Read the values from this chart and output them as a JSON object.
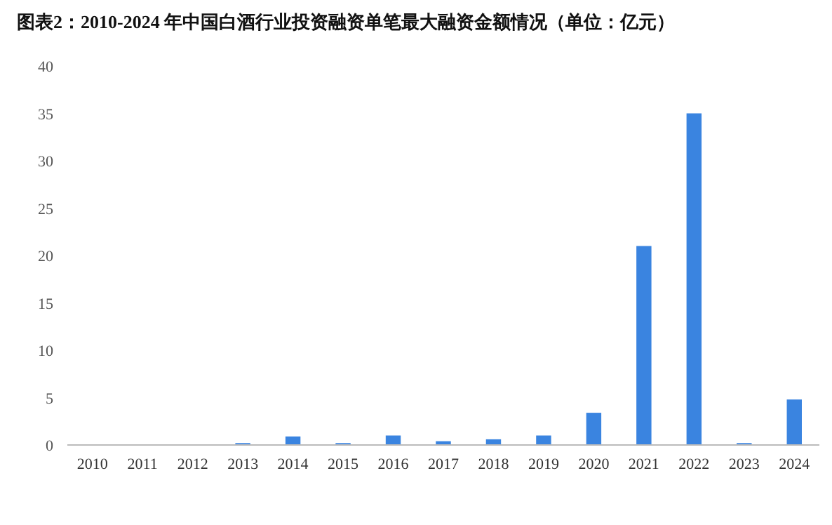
{
  "chart_data": {
    "type": "bar",
    "title": "图表2：2010-2024 年中国白酒行业投资融资单笔最大融资金额情况（单位：亿元）",
    "categories": [
      "2010",
      "2011",
      "2012",
      "2013",
      "2014",
      "2015",
      "2016",
      "2017",
      "2018",
      "2019",
      "2020",
      "2021",
      "2022",
      "2023",
      "2024"
    ],
    "values": [
      0,
      0,
      0,
      0.2,
      0.9,
      0.2,
      1.0,
      0.4,
      0.6,
      1.0,
      3.4,
      21,
      35,
      0.2,
      4.8
    ],
    "color": "#3a84e0",
    "ylim": [
      0,
      40
    ],
    "yticks": [
      0,
      5,
      10,
      15,
      20,
      25,
      30,
      35,
      40
    ],
    "grid": false
  }
}
